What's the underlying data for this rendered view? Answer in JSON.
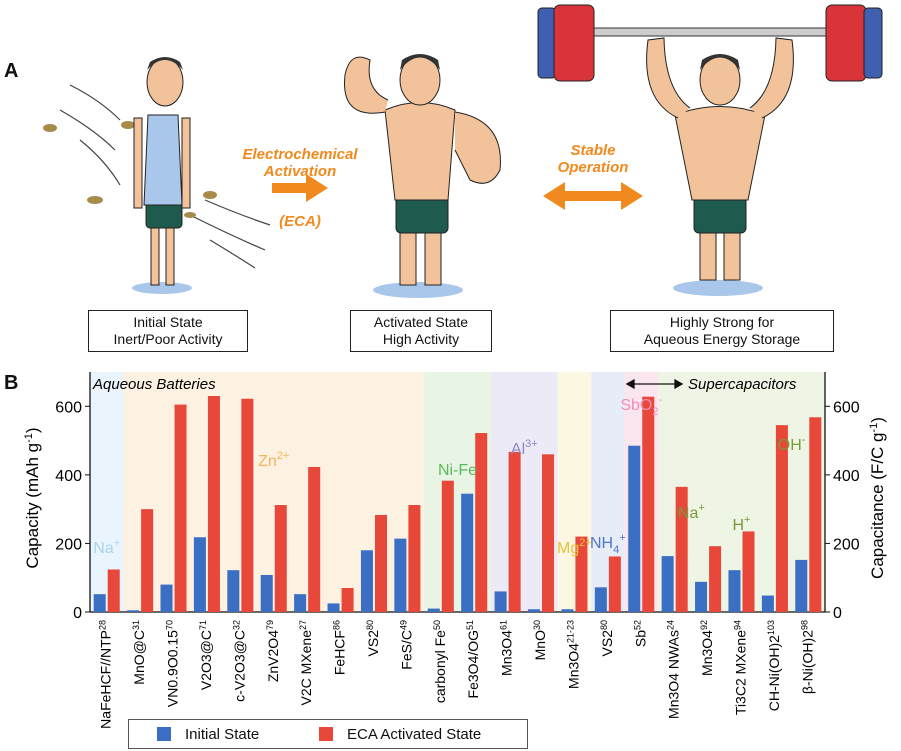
{
  "panel_a": {
    "letter": "A",
    "captions": [
      {
        "line1": "Initial State",
        "line2": "Inert/Poor Activity"
      },
      {
        "line1": "Activated State",
        "line2": "High Activity"
      },
      {
        "line1": "Highly Strong for",
        "line2": "Aqueous Energy Storage"
      }
    ],
    "arrow1": {
      "line1": "Electrochemical",
      "line2": "Activation",
      "line3": "(ECA)"
    },
    "arrow2": {
      "line1": "Stable",
      "line2": "Operation"
    },
    "colors": {
      "arrow": "#f08a1e",
      "skin": "#f2c39a",
      "shorts": "#1f5a4f",
      "tank": "#a9c7ea",
      "plate_red": "#d8343a",
      "plate_blue": "#3f5fb0"
    }
  },
  "panel_b": {
    "letter": "B",
    "section_left": "Aqueous Batteries",
    "section_right": "Supercapacitors",
    "legend": {
      "initial": "Initial State",
      "activated": "ECA Activated State"
    },
    "ylabel_left": "Capacity (mAh g",
    "ylabel_left_sup": "-1",
    "ylabel_left_end": ")",
    "ylabel_right": "Capacitance (F/C g",
    "ylabel_right_sup": "-1",
    "ylabel_right_end": ")"
  },
  "chart_data": {
    "type": "bar",
    "ylim_left": [
      0,
      700
    ],
    "ylim_right": [
      0,
      700
    ],
    "yticks": [
      0,
      200,
      400,
      600
    ],
    "colors": {
      "initial": "#3a6fc4",
      "activated": "#e8483a"
    },
    "categories": [
      {
        "label": "NaFeHCF//NTP",
        "ref": "28"
      },
      {
        "label": "MnO@C",
        "ref": "31"
      },
      {
        "label": "VN0.9O0.15",
        "ref": "70"
      },
      {
        "label": "V2O3@C",
        "ref": "71"
      },
      {
        "label": "c-V2O3@C",
        "ref": "32"
      },
      {
        "label": "ZnV2O4",
        "ref": "79"
      },
      {
        "label": "V2C MXene",
        "ref": "27"
      },
      {
        "label": "FeHCF",
        "ref": "86"
      },
      {
        "label": "VS2",
        "ref": "80"
      },
      {
        "label": "FeS/C",
        "ref": "49"
      },
      {
        "label": "carbonyl Fe",
        "ref": "50"
      },
      {
        "label": "Fe3O4/OG",
        "ref": "51"
      },
      {
        "label": "Mn3O4",
        "ref": "61"
      },
      {
        "label": "MnO",
        "ref": "30"
      },
      {
        "label": "Mn3O4",
        "ref": "21-23"
      },
      {
        "label": "VS2",
        "ref": "80"
      },
      {
        "label": "Sb",
        "ref": "52"
      },
      {
        "label": "Mn3O4 NWAs",
        "ref": "24"
      },
      {
        "label": "Mn3O4",
        "ref": "92"
      },
      {
        "label": "Ti3C2 MXene",
        "ref": "94"
      },
      {
        "label": "CH-Ni(OH)2",
        "ref": "103"
      },
      {
        "label": "β-Ni(OH)2",
        "ref": "98"
      }
    ],
    "series": [
      {
        "name": "Initial State",
        "values": [
          52,
          5,
          80,
          218,
          122,
          108,
          52,
          25,
          180,
          214,
          10,
          345,
          60,
          8,
          8,
          72,
          485,
          163,
          88,
          122,
          48,
          152
        ]
      },
      {
        "name": "ECA Activated State",
        "values": [
          124,
          300,
          605,
          630,
          622,
          312,
          423,
          70,
          283,
          312,
          383,
          522,
          467,
          460,
          220,
          162,
          628,
          365,
          192,
          235,
          545,
          568
        ]
      }
    ],
    "ion_groups": [
      {
        "label": "Na",
        "sup": "+",
        "color": "#a8d4ef",
        "bg": "#eaf4fc",
        "from": 0,
        "to": 0
      },
      {
        "label": "Zn",
        "sup": "2+",
        "color": "#f2b55a",
        "bg": "#fdf1e2",
        "from": 1,
        "to": 9
      },
      {
        "label": "Ni-Fe",
        "sup": "",
        "color": "#5cb85c",
        "bg": "#e8f5e4",
        "from": 10,
        "to": 11
      },
      {
        "label": "Al",
        "sup": "3+",
        "color": "#8f86c8",
        "bg": "#eceaf6",
        "from": 12,
        "to": 13
      },
      {
        "label": "Mg",
        "sup": "2+",
        "color": "#e6c23a",
        "bg": "#fcf7e0",
        "from": 14,
        "to": 14
      },
      {
        "label": "NH",
        "sub": "4",
        "sup": "+",
        "color": "#4f78c8",
        "bg": "#e6edf8",
        "from": 15,
        "to": 15
      },
      {
        "label": "SbO",
        "sub": "2",
        "sup": "-",
        "color": "#ee8fb8",
        "bg": "#fbe6ef",
        "from": 16,
        "to": 16
      },
      {
        "label": "Na",
        "sup": "+",
        "color": "#7a9a3a",
        "bg": "#eff5e4",
        "from": 17,
        "to": 18
      },
      {
        "label": "H",
        "sup": "+",
        "color": "#7a9a3a",
        "bg": "#eff5e4",
        "from": 19,
        "to": 19
      },
      {
        "label": "OH",
        "sup": "-",
        "color": "#7a9a3a",
        "bg": "#eff5e4",
        "from": 20,
        "to": 21
      }
    ]
  }
}
